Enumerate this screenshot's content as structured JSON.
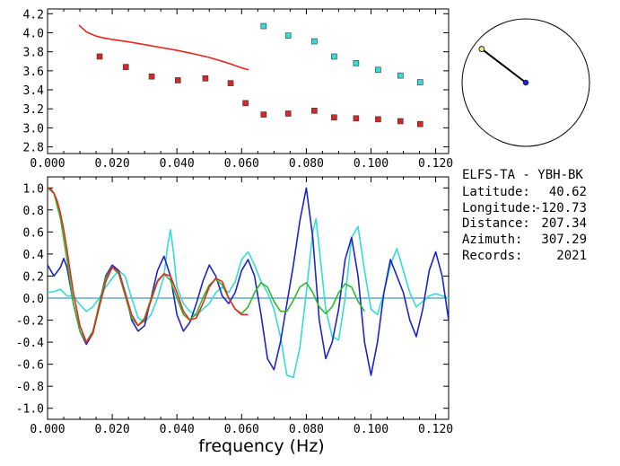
{
  "info": {
    "station": "ELFS-TA  -  YBH-BK",
    "latitude_label": "Latitude:",
    "latitude": "40.62",
    "longitude_label": "Longitude:",
    "longitude": "-120.73",
    "distance_label": "Distance:",
    "distance": "207.34",
    "azimuth_label": "Azimuth:",
    "azimuth": "307.29",
    "records_label": "Records:",
    "records": "2021"
  },
  "chart_data": [
    {
      "type": "scatter",
      "title": "",
      "xlabel": "",
      "ylabel": "",
      "xlim": [
        0.0,
        0.124
      ],
      "ylim": [
        2.73,
        4.25
      ],
      "xticks": [
        "0.000",
        "0.020",
        "0.040",
        "0.060",
        "0.080",
        "0.100",
        "0.120"
      ],
      "yticks": [
        "2.8",
        "3.0",
        "3.2",
        "3.4",
        "3.6",
        "3.8",
        "4.0",
        "4.2"
      ],
      "series": [
        {
          "kind": "line",
          "color": "#e8261f",
          "x": [
            0.0097,
            0.012,
            0.015,
            0.018,
            0.021,
            0.025,
            0.03,
            0.035,
            0.04,
            0.045,
            0.05,
            0.055,
            0.058,
            0.06,
            0.0622
          ],
          "y": [
            4.08,
            4.01,
            3.965,
            3.94,
            3.925,
            3.905,
            3.875,
            3.845,
            3.815,
            3.78,
            3.74,
            3.69,
            3.655,
            3.63,
            3.61
          ]
        },
        {
          "kind": "markers",
          "color": "#d62728",
          "x": [
            0.0161,
            0.0242,
            0.0322,
            0.0403,
            0.0488,
            0.0566,
            0.0612,
            0.0668,
            0.0744,
            0.0825,
            0.0886,
            0.0954,
            0.1022,
            0.1091,
            0.1152
          ],
          "y": [
            3.75,
            3.64,
            3.54,
            3.5,
            3.52,
            3.47,
            3.26,
            3.14,
            3.15,
            3.18,
            3.11,
            3.1,
            3.09,
            3.07,
            3.04
          ]
        },
        {
          "kind": "markers",
          "color": "#33dcd8",
          "x": [
            0.0668,
            0.0744,
            0.0825,
            0.0886,
            0.0954,
            0.1022,
            0.1091,
            0.1152
          ],
          "y": [
            4.07,
            3.97,
            3.91,
            3.75,
            3.68,
            3.61,
            3.55,
            3.48
          ]
        }
      ]
    },
    {
      "type": "line",
      "title": "",
      "xlabel": "frequency (Hz)",
      "ylabel": "",
      "xlim": [
        0.0,
        0.124
      ],
      "ylim": [
        -1.1,
        1.1
      ],
      "xticks": [
        "0.000",
        "0.020",
        "0.040",
        "0.060",
        "0.080",
        "0.100",
        "0.120"
      ],
      "yticks": [
        "1.0",
        "0.8",
        "0.6",
        "0.4",
        "0.2",
        "0.0",
        "-0.2",
        "-0.4",
        "-0.6",
        "-0.8",
        "-1.0"
      ],
      "series": [
        {
          "color": "#33dcd8",
          "x": [
            0.0,
            0.002,
            0.004,
            0.006,
            0.008,
            0.01,
            0.012,
            0.014,
            0.016,
            0.018,
            0.02,
            0.022,
            0.024,
            0.026,
            0.028,
            0.03,
            0.032,
            0.034,
            0.036,
            0.037,
            0.038,
            0.039,
            0.04,
            0.042,
            0.044,
            0.046,
            0.048,
            0.05,
            0.052,
            0.054,
            0.056,
            0.058,
            0.06,
            0.062,
            0.064,
            0.066,
            0.068,
            0.07,
            0.072,
            0.074,
            0.076,
            0.078,
            0.08,
            0.082,
            0.083,
            0.084,
            0.086,
            0.088,
            0.09,
            0.092,
            0.094,
            0.096,
            0.098,
            0.1,
            0.102,
            0.104,
            0.106,
            0.108,
            0.11,
            0.112,
            0.114,
            0.116,
            0.118,
            0.12,
            0.122,
            0.124
          ],
          "y": [
            0.05,
            0.06,
            0.08,
            0.02,
            0.02,
            -0.06,
            -0.12,
            -0.08,
            0.0,
            0.1,
            0.18,
            0.25,
            0.2,
            0.0,
            -0.18,
            -0.22,
            -0.15,
            0.0,
            0.2,
            0.45,
            0.62,
            0.4,
            0.1,
            -0.05,
            -0.12,
            -0.16,
            -0.1,
            -0.05,
            0.05,
            0.1,
            0.05,
            0.15,
            0.35,
            0.42,
            0.3,
            0.15,
            0.05,
            -0.1,
            -0.35,
            -0.7,
            -0.72,
            -0.45,
            0.05,
            0.6,
            0.72,
            0.45,
            -0.1,
            -0.35,
            -0.38,
            0.0,
            0.55,
            0.65,
            0.25,
            -0.1,
            -0.15,
            0.05,
            0.3,
            0.45,
            0.25,
            0.05,
            -0.08,
            -0.03,
            0.02,
            0.04,
            0.02,
            0.0
          ]
        },
        {
          "color": "#1f24c8",
          "x": [
            0.0,
            0.002,
            0.004,
            0.005,
            0.006,
            0.008,
            0.01,
            0.012,
            0.014,
            0.016,
            0.018,
            0.02,
            0.022,
            0.024,
            0.026,
            0.028,
            0.03,
            0.032,
            0.034,
            0.036,
            0.038,
            0.04,
            0.042,
            0.044,
            0.046,
            0.048,
            0.05,
            0.052,
            0.054,
            0.056,
            0.058,
            0.06,
            0.062,
            0.064,
            0.066,
            0.068,
            0.07,
            0.072,
            0.074,
            0.076,
            0.078,
            0.08,
            0.082,
            0.084,
            0.086,
            0.088,
            0.09,
            0.092,
            0.094,
            0.096,
            0.098,
            0.1,
            0.102,
            0.104,
            0.106,
            0.108,
            0.11,
            0.112,
            0.114,
            0.116,
            0.118,
            0.12,
            0.122,
            0.124
          ],
          "y": [
            0.3,
            0.2,
            0.28,
            0.36,
            0.28,
            -0.05,
            -0.3,
            -0.42,
            -0.32,
            -0.05,
            0.2,
            0.3,
            0.25,
            0.05,
            -0.2,
            -0.3,
            -0.25,
            0.0,
            0.25,
            0.38,
            0.2,
            -0.15,
            -0.3,
            -0.22,
            -0.05,
            0.15,
            0.3,
            0.2,
            0.02,
            -0.05,
            0.05,
            0.25,
            0.35,
            0.2,
            -0.15,
            -0.55,
            -0.65,
            -0.4,
            -0.05,
            0.3,
            0.7,
            1.0,
            0.55,
            -0.2,
            -0.55,
            -0.4,
            -0.1,
            0.35,
            0.55,
            0.2,
            -0.4,
            -0.7,
            -0.4,
            0.05,
            0.35,
            0.2,
            0.05,
            -0.2,
            -0.35,
            -0.1,
            0.25,
            0.42,
            0.2,
            -0.2
          ]
        },
        {
          "color": "#2cbc2c",
          "x": [
            0.0,
            0.002,
            0.004,
            0.006,
            0.008,
            0.01,
            0.012,
            0.014,
            0.016,
            0.018,
            0.02,
            0.022,
            0.024,
            0.026,
            0.028,
            0.03,
            0.032,
            0.034,
            0.036,
            0.038,
            0.04,
            0.042,
            0.044,
            0.046,
            0.048,
            0.05,
            0.052,
            0.054,
            0.056,
            0.058,
            0.06,
            0.062,
            0.064,
            0.066,
            0.068,
            0.07,
            0.072,
            0.074,
            0.076,
            0.078,
            0.08,
            0.082,
            0.084,
            0.086,
            0.088,
            0.09,
            0.092,
            0.094,
            0.096,
            0.098
          ],
          "y": [
            1.0,
            0.95,
            0.72,
            0.35,
            -0.05,
            -0.3,
            -0.4,
            -0.3,
            -0.05,
            0.18,
            0.28,
            0.22,
            0.02,
            -0.18,
            -0.25,
            -0.18,
            0.0,
            0.16,
            0.22,
            0.16,
            0.0,
            -0.15,
            -0.2,
            -0.14,
            0.0,
            0.12,
            0.17,
            0.12,
            0.0,
            -0.1,
            -0.14,
            -0.08,
            0.05,
            0.14,
            0.1,
            -0.03,
            -0.12,
            -0.12,
            -0.02,
            0.1,
            0.14,
            0.05,
            -0.08,
            -0.14,
            -0.08,
            0.05,
            0.13,
            0.1,
            -0.03,
            -0.12
          ]
        },
        {
          "color": "#e8261f",
          "x": [
            0.0,
            0.001,
            0.002,
            0.003,
            0.004,
            0.005,
            0.006,
            0.007,
            0.008,
            0.01,
            0.012,
            0.014,
            0.016,
            0.018,
            0.02,
            0.022,
            0.024,
            0.026,
            0.028,
            0.03,
            0.032,
            0.034,
            0.036,
            0.038,
            0.04,
            0.042,
            0.044,
            0.046,
            0.048,
            0.05,
            0.052,
            0.054,
            0.056,
            0.058,
            0.06,
            0.062
          ],
          "y": [
            1.0,
            0.99,
            0.95,
            0.88,
            0.77,
            0.62,
            0.44,
            0.24,
            0.05,
            -0.25,
            -0.4,
            -0.32,
            -0.08,
            0.15,
            0.28,
            0.24,
            0.05,
            -0.15,
            -0.25,
            -0.2,
            -0.02,
            0.15,
            0.22,
            0.2,
            0.05,
            -0.12,
            -0.2,
            -0.18,
            -0.05,
            0.1,
            0.18,
            0.15,
            0.0,
            -0.1,
            -0.15,
            -0.15
          ]
        }
      ]
    },
    {
      "type": "other",
      "kind": "azimuth-dial",
      "azimuth_deg": 307.29,
      "colors": {
        "ring": "#000000",
        "needle": "#000000",
        "center": "#1f24c8",
        "tip": "#f2e08a"
      }
    }
  ]
}
